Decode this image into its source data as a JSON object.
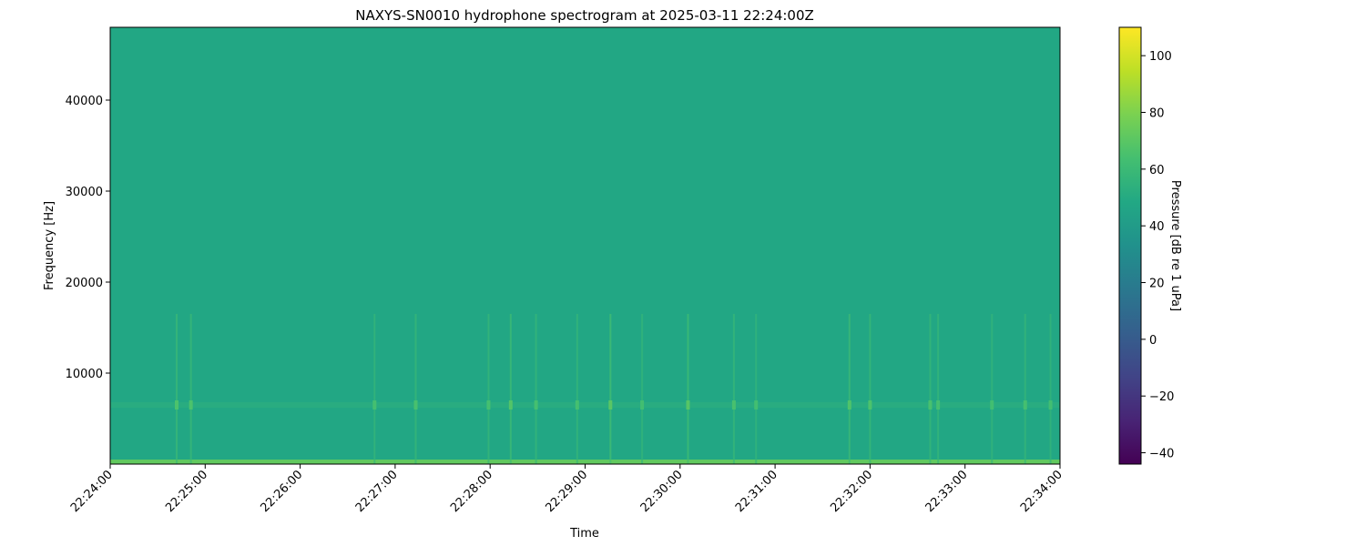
{
  "chart_data": {
    "type": "heatmap",
    "title": "NAXYS-SN0010 hydrophone spectrogram at 2025-03-11 22:24:00Z",
    "xlabel": "Time",
    "ylabel": "Frequency [Hz]",
    "colorbar_label": "Pressure [dB re 1 uPa]",
    "colormap": "viridis",
    "xlim": [
      "22:24:00",
      "22:34:00"
    ],
    "ylim": [
      0,
      48000
    ],
    "clim": [
      -44,
      110
    ],
    "x_ticks": [
      "22:24:00",
      "22:25:00",
      "22:26:00",
      "22:27:00",
      "22:28:00",
      "22:29:00",
      "22:30:00",
      "22:31:00",
      "22:32:00",
      "22:33:00",
      "22:34:00"
    ],
    "y_ticks": [
      10000,
      20000,
      30000,
      40000
    ],
    "colorbar_ticks": [
      -40,
      -20,
      0,
      20,
      40,
      60,
      80,
      100
    ],
    "background_level_db": 48,
    "low_frequency_band": {
      "freq_range": [
        0,
        500
      ],
      "level_db": 72
    },
    "tonal_band": {
      "freq": 6500,
      "level_db": 62
    },
    "transients": [
      {
        "time": "22:24:42",
        "level_db": 60
      },
      {
        "time": "22:24:51",
        "level_db": 60
      },
      {
        "time": "22:26:47",
        "level_db": 58
      },
      {
        "time": "22:27:13",
        "level_db": 59
      },
      {
        "time": "22:27:59",
        "level_db": 58
      },
      {
        "time": "22:28:13",
        "level_db": 62
      },
      {
        "time": "22:28:29",
        "level_db": 58
      },
      {
        "time": "22:28:55",
        "level_db": 58
      },
      {
        "time": "22:29:16",
        "level_db": 64
      },
      {
        "time": "22:29:36",
        "level_db": 57
      },
      {
        "time": "22:30:05",
        "level_db": 63
      },
      {
        "time": "22:30:34",
        "level_db": 59
      },
      {
        "time": "22:30:48",
        "level_db": 57
      },
      {
        "time": "22:31:47",
        "level_db": 61
      },
      {
        "time": "22:32:00",
        "level_db": 60
      },
      {
        "time": "22:32:38",
        "level_db": 59
      },
      {
        "time": "22:32:43",
        "level_db": 58
      },
      {
        "time": "22:33:17",
        "level_db": 57
      },
      {
        "time": "22:33:38",
        "level_db": 58
      },
      {
        "time": "22:33:54",
        "level_db": 57
      }
    ],
    "grid": false
  }
}
